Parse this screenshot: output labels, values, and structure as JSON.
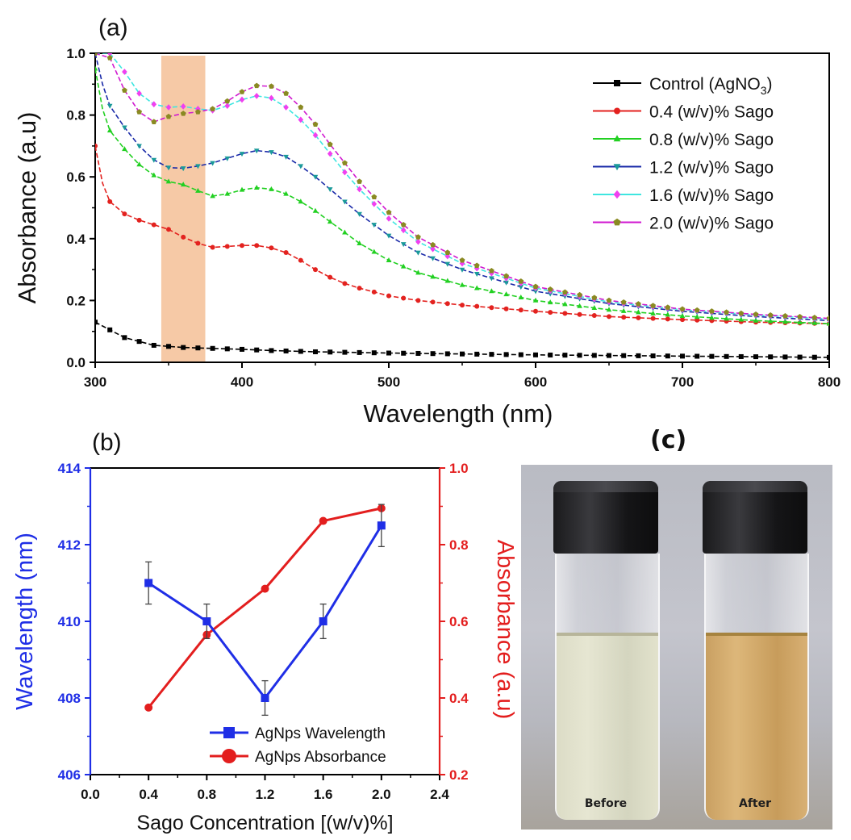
{
  "chart_data": [
    {
      "panel_label": "(a)",
      "type": "line",
      "xlabel": "Wavelength (nm)",
      "ylabel": "Absorbance (a.u)",
      "xlim": [
        300,
        800
      ],
      "ylim": [
        0.0,
        1.0
      ],
      "xticks": [
        "300",
        "400",
        "500",
        "600",
        "700",
        "800"
      ],
      "yticks": [
        "0.0",
        "0.2",
        "0.4",
        "0.6",
        "0.8",
        "1.0"
      ],
      "legend_position": "top-right",
      "highlight_band": {
        "x": [
          345,
          375
        ],
        "color": "#f6c9a6"
      },
      "series": [
        {
          "name": "Control (AgNO3)",
          "label_main": "Control (AgNO",
          "label_sub": "3",
          "label_end": ")",
          "color": "#000000",
          "marker": "square",
          "x": [
            300,
            320,
            340,
            360,
            380,
            400,
            420,
            450,
            500,
            550,
            600,
            650,
            700,
            750,
            800
          ],
          "y": [
            0.13,
            0.08,
            0.055,
            0.048,
            0.045,
            0.042,
            0.038,
            0.034,
            0.03,
            0.027,
            0.024,
            0.022,
            0.02,
            0.018,
            0.016
          ]
        },
        {
          "name": "0.4 (w/v)% Sago",
          "color": "#e3221f",
          "marker": "circle",
          "x": [
            300,
            305,
            310,
            320,
            330,
            340,
            350,
            360,
            370,
            380,
            390,
            400,
            410,
            420,
            430,
            440,
            450,
            460,
            470,
            480,
            500,
            520,
            550,
            600,
            650,
            700,
            750,
            800
          ],
          "y": [
            0.7,
            0.58,
            0.52,
            0.48,
            0.46,
            0.445,
            0.43,
            0.405,
            0.385,
            0.372,
            0.375,
            0.378,
            0.378,
            0.37,
            0.355,
            0.33,
            0.3,
            0.275,
            0.255,
            0.24,
            0.215,
            0.2,
            0.185,
            0.165,
            0.148,
            0.138,
            0.13,
            0.125
          ]
        },
        {
          "name": "0.8 (w/v)% Sago",
          "color": "#22d022",
          "marker": "triangle-up",
          "x": [
            300,
            305,
            310,
            320,
            330,
            340,
            350,
            360,
            370,
            380,
            390,
            400,
            410,
            420,
            430,
            440,
            450,
            460,
            470,
            480,
            500,
            520,
            550,
            600,
            650,
            700,
            750,
            800
          ],
          "y": [
            0.95,
            0.82,
            0.75,
            0.69,
            0.64,
            0.605,
            0.585,
            0.575,
            0.555,
            0.538,
            0.545,
            0.558,
            0.565,
            0.56,
            0.545,
            0.52,
            0.49,
            0.455,
            0.42,
            0.385,
            0.33,
            0.29,
            0.25,
            0.2,
            0.17,
            0.15,
            0.135,
            0.125
          ]
        },
        {
          "name": "1.2 (w/v)% Sago",
          "color": "#1a2aa8",
          "marker": "triangle-down",
          "x": [
            300,
            305,
            310,
            320,
            330,
            340,
            350,
            360,
            370,
            380,
            390,
            400,
            410,
            420,
            430,
            440,
            450,
            460,
            470,
            480,
            500,
            520,
            550,
            600,
            650,
            700,
            750,
            800
          ],
          "y": [
            1.0,
            0.9,
            0.83,
            0.76,
            0.7,
            0.655,
            0.63,
            0.628,
            0.635,
            0.645,
            0.66,
            0.675,
            0.685,
            0.68,
            0.665,
            0.635,
            0.6,
            0.56,
            0.52,
            0.48,
            0.41,
            0.355,
            0.3,
            0.23,
            0.19,
            0.165,
            0.148,
            0.135
          ]
        },
        {
          "name": "1.6 (w/v)% Sago",
          "color": "#3ee6e0",
          "marker": "diamond",
          "x": [
            300,
            310,
            320,
            330,
            340,
            350,
            360,
            370,
            380,
            390,
            400,
            410,
            420,
            430,
            440,
            450,
            460,
            470,
            480,
            500,
            520,
            550,
            600,
            650,
            700,
            750,
            800
          ],
          "y": [
            1.0,
            1.0,
            0.94,
            0.87,
            0.835,
            0.825,
            0.828,
            0.82,
            0.815,
            0.83,
            0.85,
            0.862,
            0.855,
            0.825,
            0.785,
            0.735,
            0.675,
            0.615,
            0.56,
            0.465,
            0.39,
            0.32,
            0.24,
            0.195,
            0.17,
            0.153,
            0.14
          ]
        },
        {
          "name": "2.0 (w/v)% Sago",
          "color": "#8a8a22",
          "marker": "pentagon",
          "x": [
            300,
            310,
            320,
            330,
            340,
            350,
            360,
            370,
            380,
            390,
            400,
            410,
            420,
            430,
            440,
            450,
            460,
            470,
            480,
            500,
            520,
            550,
            600,
            650,
            700,
            750,
            800
          ],
          "y": [
            1.0,
            0.985,
            0.88,
            0.81,
            0.778,
            0.795,
            0.805,
            0.81,
            0.82,
            0.845,
            0.875,
            0.895,
            0.893,
            0.87,
            0.825,
            0.77,
            0.705,
            0.645,
            0.585,
            0.485,
            0.405,
            0.33,
            0.245,
            0.2,
            0.172,
            0.155,
            0.142
          ]
        }
      ],
      "series_line_colors": [
        "#000000",
        "#e3221f",
        "#22d022",
        "#1a2aa8",
        "#3ee6e0",
        "#d01ad0"
      ],
      "marker_colors": [
        "#000000",
        "#e3221f",
        "#22d022",
        "#1a9a9a",
        "#f040f0",
        "#8a8a22"
      ]
    },
    {
      "panel_label": "(b)",
      "type": "line",
      "xlabel": "Sago Concentration [(w/v)%]",
      "ylabel_left": "Wavelength (nm)",
      "ylabel_right": "Absorbance (a.u)",
      "xlim": [
        0.0,
        2.4
      ],
      "ylim_left": [
        406,
        414
      ],
      "ylim_right": [
        0.2,
        1.0
      ],
      "xticks": [
        "0.0",
        "0.4",
        "0.8",
        "1.2",
        "1.6",
        "2.0",
        "2.4"
      ],
      "yticks_left": [
        "406",
        "408",
        "410",
        "412",
        "414"
      ],
      "yticks_right": [
        "0.2",
        "0.4",
        "0.6",
        "0.8",
        "1.0"
      ],
      "legend_position": "bottom-right",
      "series": [
        {
          "name": "AgNps Wavelength",
          "color": "#1f2ee6",
          "marker": "square",
          "axis": "left",
          "x": [
            0.4,
            0.8,
            1.2,
            1.6,
            2.0
          ],
          "y": [
            411,
            410,
            408,
            410,
            412.5
          ],
          "error": [
            0.55,
            0.45,
            0.45,
            0.45,
            0.55
          ]
        },
        {
          "name": "AgNps Absorbance",
          "color": "#e31e1e",
          "marker": "circle",
          "axis": "right",
          "x": [
            0.4,
            0.8,
            1.2,
            1.6,
            2.0
          ],
          "y": [
            0.375,
            0.565,
            0.685,
            0.862,
            0.895
          ]
        }
      ]
    }
  ],
  "photo": {
    "panel_label": "(c)",
    "vials": [
      {
        "label": "Before",
        "liquid": "clear pale"
      },
      {
        "label": "After",
        "liquid": "golden yellow"
      }
    ]
  }
}
